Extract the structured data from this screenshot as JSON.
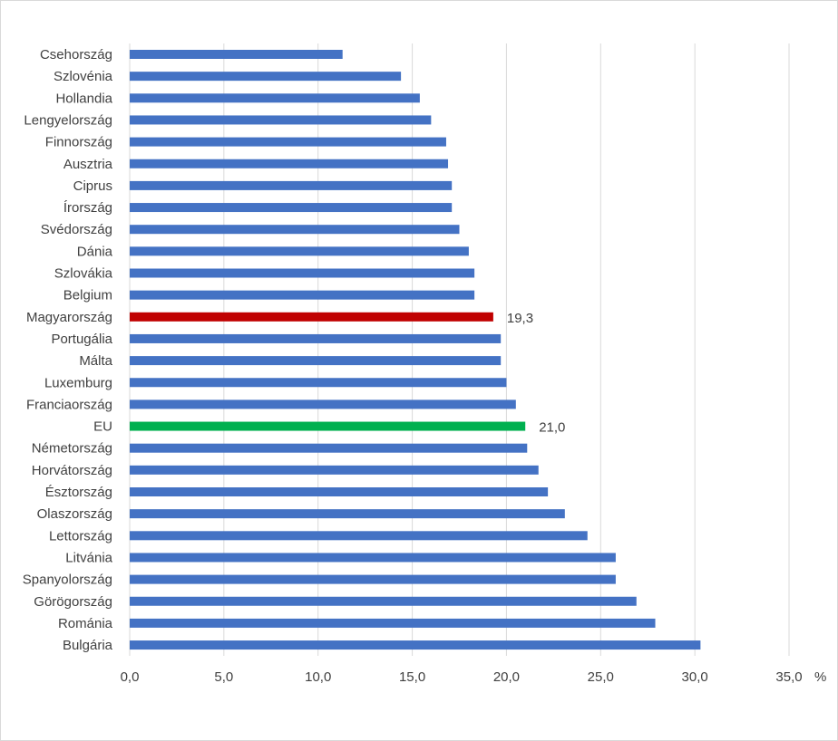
{
  "chart_data": {
    "type": "bar",
    "orientation": "horizontal",
    "categories": [
      "Csehország",
      "Szlovénia",
      "Hollandia",
      "Lengyelország",
      "Finnország",
      "Ausztria",
      "Ciprus",
      "Írország",
      "Svédország",
      "Dánia",
      "Szlovákia",
      "Belgium",
      "Magyarország",
      "Portugália",
      "Málta",
      "Luxemburg",
      "Franciaország",
      "EU",
      "Németország",
      "Horvátország",
      "Észtország",
      "Olaszország",
      "Lettország",
      "Litvánia",
      "Spanyolország",
      "Görögország",
      "Románia",
      "Bulgária"
    ],
    "values": [
      11.3,
      14.4,
      15.4,
      16.0,
      16.8,
      16.9,
      17.1,
      17.1,
      17.5,
      18.0,
      18.3,
      18.3,
      19.3,
      19.7,
      19.7,
      20.0,
      20.5,
      21.0,
      21.1,
      21.7,
      22.2,
      23.1,
      24.3,
      25.8,
      25.8,
      26.9,
      27.9,
      30.3
    ],
    "highlights": {
      "Magyarország": {
        "color": "#c00000",
        "label": "19,3"
      },
      "EU": {
        "color": "#00b050",
        "label": "21,0"
      }
    },
    "default_color": "#4472c4",
    "xlim": [
      0,
      35
    ],
    "xticks": [
      "0,0",
      "5,0",
      "10,0",
      "15,0",
      "20,0",
      "25,0",
      "30,0",
      "35,0"
    ],
    "xunit": "%",
    "grid": "vertical",
    "title": "",
    "xlabel": "",
    "ylabel": ""
  }
}
